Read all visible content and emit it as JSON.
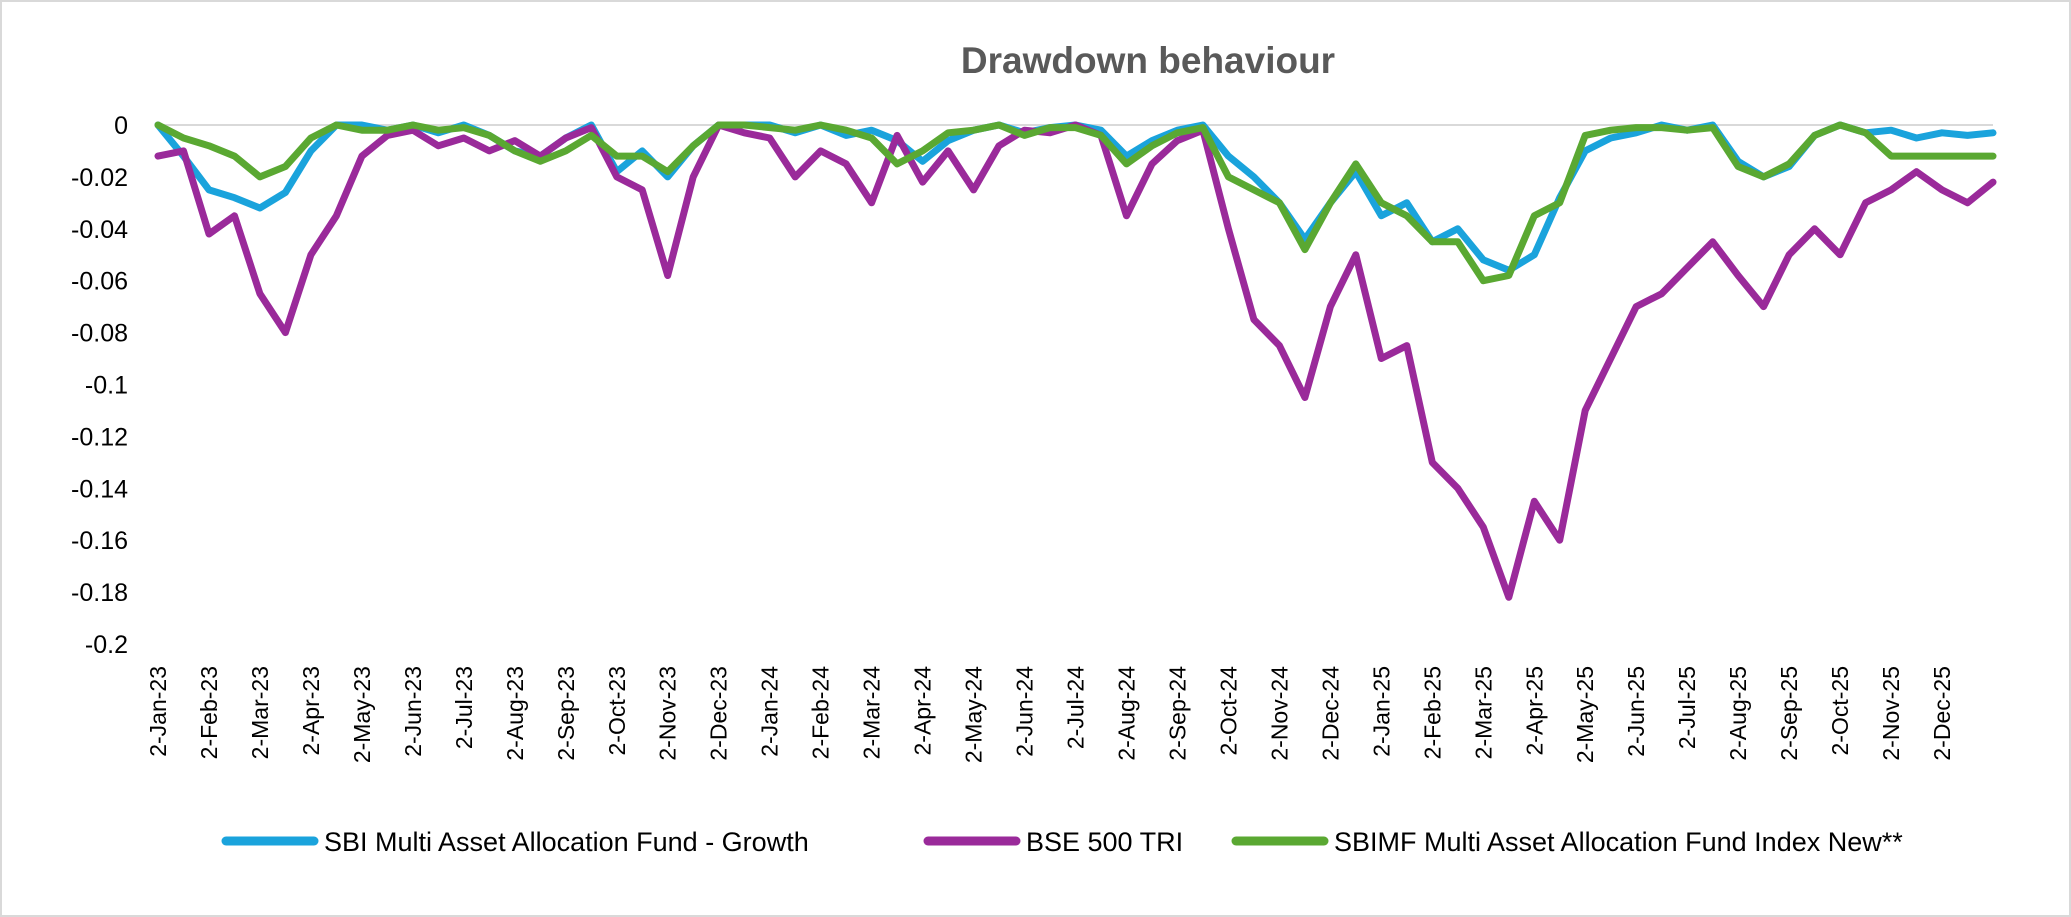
{
  "chart_data": {
    "type": "line",
    "title": "Drawdown behaviour",
    "xlabel": "",
    "ylabel": "",
    "ylim": [
      -0.2,
      0
    ],
    "y_ticks": [
      "0",
      "-0.02",
      "-0.04",
      "-0.06",
      "-0.08",
      "-0.1",
      "-0.12",
      "-0.14",
      "-0.16",
      "-0.18",
      "-0.2"
    ],
    "x_ticks": [
      "2-Jan-23",
      "2-Feb-23",
      "2-Mar-23",
      "2-Apr-23",
      "2-May-23",
      "2-Jun-23",
      "2-Jul-23",
      "2-Aug-23",
      "2-Sep-23",
      "2-Oct-23",
      "2-Nov-23",
      "2-Dec-23",
      "2-Jan-24",
      "2-Feb-24",
      "2-Mar-24",
      "2-Apr-24",
      "2-May-24",
      "2-Jun-24",
      "2-Jul-24",
      "2-Aug-24",
      "2-Sep-24",
      "2-Oct-24",
      "2-Nov-24",
      "2-Dec-24",
      "2-Jan-25",
      "2-Feb-25",
      "2-Mar-25",
      "2-Apr-25",
      "2-May-25",
      "2-Jun-25",
      "2-Jul-25",
      "2-Aug-25",
      "2-Sep-25",
      "2-Oct-25",
      "2-Nov-25",
      "2-Dec-25"
    ],
    "grid": false,
    "legend_position": "bottom",
    "x": [
      "2-Jan-23",
      "17-Jan-23",
      "2-Feb-23",
      "17-Feb-23",
      "2-Mar-23",
      "17-Mar-23",
      "2-Apr-23",
      "17-Apr-23",
      "2-May-23",
      "17-May-23",
      "2-Jun-23",
      "17-Jun-23",
      "2-Jul-23",
      "17-Jul-23",
      "2-Aug-23",
      "17-Aug-23",
      "2-Sep-23",
      "17-Sep-23",
      "2-Oct-23",
      "17-Oct-23",
      "2-Nov-23",
      "17-Nov-23",
      "2-Dec-23",
      "17-Dec-23",
      "2-Jan-24",
      "17-Jan-24",
      "2-Feb-24",
      "17-Feb-24",
      "2-Mar-24",
      "17-Mar-24",
      "2-Apr-24",
      "17-Apr-24",
      "2-May-24",
      "17-May-24",
      "2-Jun-24",
      "17-Jun-24",
      "2-Jul-24",
      "17-Jul-24",
      "2-Aug-24",
      "17-Aug-24",
      "2-Sep-24",
      "17-Sep-24",
      "2-Oct-24",
      "17-Oct-24",
      "2-Nov-24",
      "17-Nov-24",
      "2-Dec-24",
      "17-Dec-24",
      "2-Jan-25",
      "17-Jan-25",
      "2-Feb-25",
      "17-Feb-25",
      "2-Mar-25",
      "17-Mar-25",
      "2-Apr-25",
      "17-Apr-25",
      "2-May-25",
      "17-May-25",
      "2-Jun-25",
      "17-Jun-25",
      "2-Jul-25",
      "17-Jul-25",
      "2-Aug-25",
      "17-Aug-25",
      "2-Sep-25",
      "17-Sep-25",
      "2-Oct-25",
      "17-Oct-25",
      "2-Nov-25",
      "17-Nov-25",
      "2-Dec-25",
      "17-Dec-25",
      "31-Dec-25"
    ],
    "series": [
      {
        "name": "SBI Multi Asset Allocation Fund - Growth",
        "color": "#1aa3dc",
        "values": [
          0,
          -0.012,
          -0.025,
          -0.028,
          -0.032,
          -0.026,
          -0.01,
          0,
          0,
          -0.002,
          0,
          -0.003,
          0,
          -0.004,
          -0.01,
          -0.012,
          -0.005,
          0,
          -0.018,
          -0.01,
          -0.02,
          -0.008,
          0,
          0,
          0,
          -0.003,
          0,
          -0.004,
          -0.002,
          -0.006,
          -0.014,
          -0.006,
          -0.002,
          0,
          -0.003,
          -0.001,
          0,
          -0.002,
          -0.012,
          -0.006,
          -0.002,
          0,
          -0.012,
          -0.02,
          -0.03,
          -0.044,
          -0.03,
          -0.018,
          -0.035,
          -0.03,
          -0.045,
          -0.04,
          -0.052,
          -0.056,
          -0.05,
          -0.028,
          -0.01,
          -0.005,
          -0.003,
          0,
          -0.002,
          0,
          -0.014,
          -0.02,
          -0.016,
          -0.004,
          0,
          -0.003,
          -0.002,
          -0.005,
          -0.003,
          -0.004,
          -0.003
        ]
      },
      {
        "name": "BSE 500 TRI",
        "color": "#9a2a9a",
        "values": [
          -0.012,
          -0.01,
          -0.042,
          -0.035,
          -0.065,
          -0.08,
          -0.05,
          -0.035,
          -0.012,
          -0.004,
          -0.002,
          -0.008,
          -0.005,
          -0.01,
          -0.006,
          -0.012,
          -0.005,
          -0.001,
          -0.02,
          -0.025,
          -0.058,
          -0.02,
          0,
          -0.003,
          -0.005,
          -0.02,
          -0.01,
          -0.015,
          -0.03,
          -0.004,
          -0.022,
          -0.01,
          -0.025,
          -0.008,
          -0.002,
          -0.003,
          0,
          -0.004,
          -0.035,
          -0.015,
          -0.006,
          -0.002,
          -0.04,
          -0.075,
          -0.085,
          -0.105,
          -0.07,
          -0.05,
          -0.09,
          -0.085,
          -0.13,
          -0.14,
          -0.155,
          -0.182,
          -0.145,
          -0.16,
          -0.11,
          -0.09,
          -0.07,
          -0.065,
          -0.055,
          -0.045,
          -0.058,
          -0.07,
          -0.05,
          -0.04,
          -0.05,
          -0.03,
          -0.025,
          -0.018,
          -0.025,
          -0.03,
          -0.022
        ]
      },
      {
        "name": "SBIMF Multi Asset Allocation Fund Index New**",
        "color": "#5aa832",
        "values": [
          0,
          -0.005,
          -0.008,
          -0.012,
          -0.02,
          -0.016,
          -0.005,
          0,
          -0.002,
          -0.002,
          0,
          -0.002,
          -0.001,
          -0.004,
          -0.01,
          -0.014,
          -0.01,
          -0.004,
          -0.012,
          -0.012,
          -0.018,
          -0.008,
          0,
          0,
          -0.001,
          -0.002,
          0,
          -0.002,
          -0.005,
          -0.015,
          -0.01,
          -0.003,
          -0.002,
          0,
          -0.004,
          -0.001,
          -0.001,
          -0.004,
          -0.015,
          -0.008,
          -0.003,
          -0.001,
          -0.02,
          -0.025,
          -0.03,
          -0.048,
          -0.03,
          -0.015,
          -0.03,
          -0.035,
          -0.045,
          -0.045,
          -0.06,
          -0.058,
          -0.035,
          -0.03,
          -0.004,
          -0.002,
          -0.001,
          -0.001,
          -0.002,
          -0.001,
          -0.016,
          -0.02,
          -0.015,
          -0.004,
          0,
          -0.003,
          -0.012,
          -0.012,
          -0.012,
          -0.012,
          -0.012
        ]
      }
    ]
  }
}
